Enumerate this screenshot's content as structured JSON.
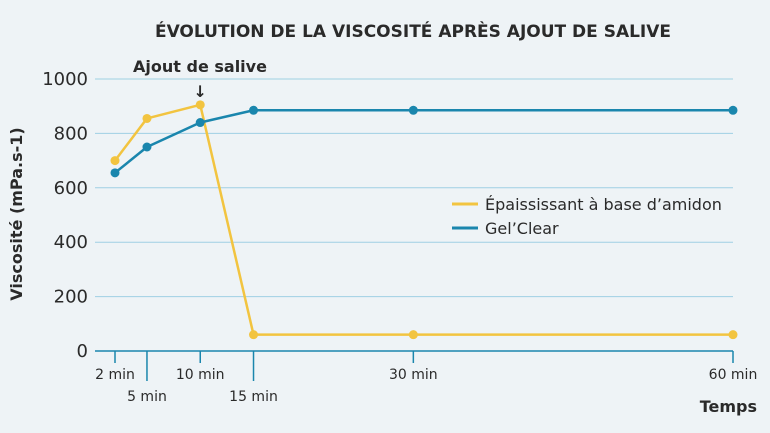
{
  "chart_data": {
    "type": "line",
    "title": "ÉVOLUTION DE LA VISCOSITÉ APRÈS AJOUT DE SALIVE",
    "xlabel": "Temps",
    "ylabel": "Viscosité (mPa.s-1)",
    "ylim": [
      0,
      1000
    ],
    "yticks": [
      "0",
      "200",
      "400",
      "600",
      "800",
      "1000"
    ],
    "grid": true,
    "legend_position": "right",
    "x_ticks": [
      {
        "x": 2,
        "label": "2 min",
        "row": 1
      },
      {
        "x": 5,
        "label": "5 min",
        "row": 2
      },
      {
        "x": 10,
        "label": "10 min",
        "row": 1
      },
      {
        "x": 15,
        "label": "15 min",
        "row": 2
      },
      {
        "x": 30,
        "label": "30 min",
        "row": 1
      },
      {
        "x": 60,
        "label": "60 min",
        "row": 1
      }
    ],
    "annotation": {
      "text": "Ajout de salive",
      "x": 10,
      "arrow": "↓"
    },
    "series": [
      {
        "name": "Épaississant à base d’amidon",
        "color": "#f2c440",
        "x": [
          2,
          5,
          10,
          15,
          30,
          60
        ],
        "y": [
          700,
          855,
          905,
          60,
          60,
          60
        ]
      },
      {
        "name": "Gel’Clear",
        "color": "#1a86ad",
        "x": [
          2,
          5,
          10,
          15,
          30,
          60
        ],
        "y": [
          655,
          750,
          840,
          885,
          885,
          885
        ]
      }
    ]
  }
}
